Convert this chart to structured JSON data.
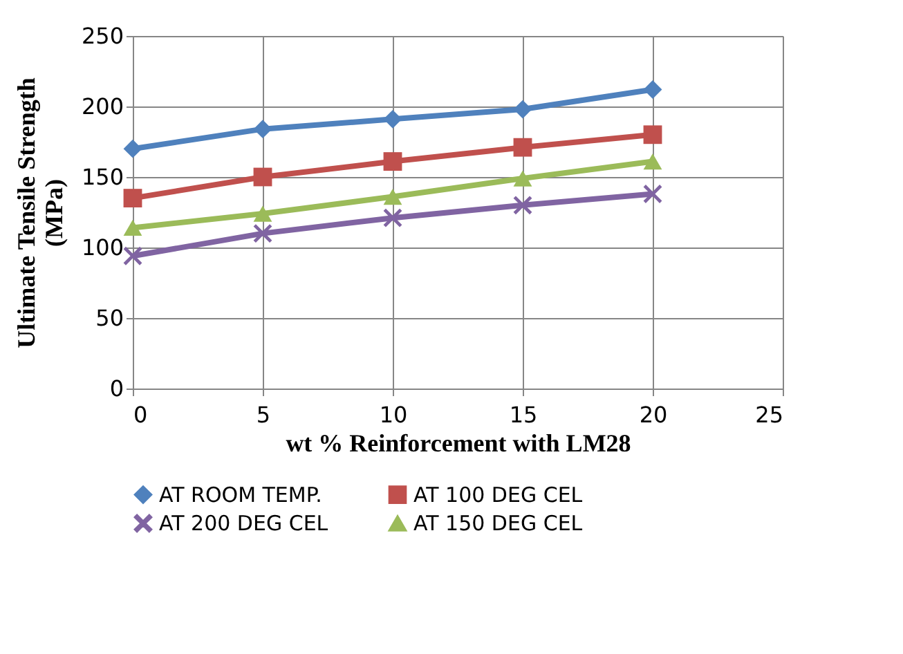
{
  "chart_data": {
    "type": "line",
    "xlabel": "wt % Reinforcement with LM28",
    "ylabel": "Ultimate Tensile Strength\n(MPa)",
    "x": [
      0,
      5,
      10,
      15,
      20
    ],
    "xlim": [
      0,
      25
    ],
    "xticks": [
      0,
      5,
      10,
      15,
      20,
      25
    ],
    "ylim": [
      0,
      250
    ],
    "yticks": [
      0,
      50,
      100,
      150,
      200,
      250
    ],
    "grid": true,
    "legend": "bottom",
    "line_style": "solid",
    "series": [
      {
        "name": "AT ROOM TEMP.",
        "color": "#4f81bd",
        "marker": "diamond",
        "values": [
          170,
          184,
          191,
          198,
          212
        ]
      },
      {
        "name": "AT 100 DEG CEL",
        "color": "#c0504d",
        "marker": "square",
        "values": [
          135,
          150,
          161,
          171,
          180
        ]
      },
      {
        "name": "AT 200 DEG CEL",
        "color": "#8064a2",
        "marker": "cross",
        "values": [
          94,
          110,
          121,
          130,
          138
        ]
      },
      {
        "name": "AT 150 DEG CEL",
        "color": "#9bbb59",
        "marker": "triangle",
        "values": [
          114,
          124,
          136,
          149,
          161
        ]
      }
    ]
  }
}
